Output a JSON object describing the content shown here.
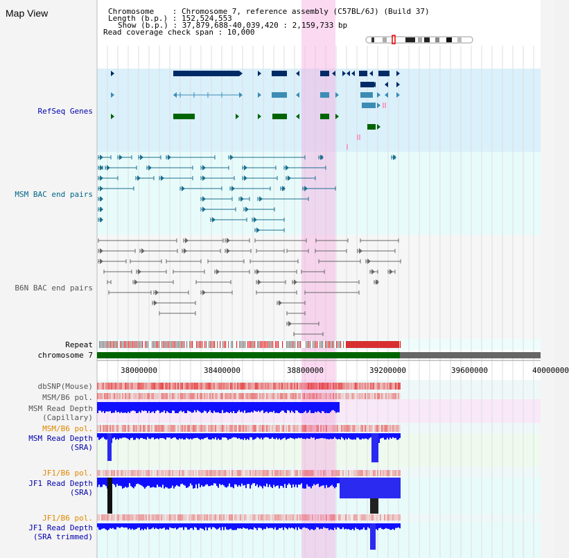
{
  "panel": {
    "title": "Map View",
    "info_lines": [
      "Chromosome    : Chromosome 7, reference assembly (C57BL/6J) (Build 37)",
      "Length (b.p.) : 152,524,553",
      "Show (b.p.) : 37,879,688-40,039,420 : 2,159,733 bp",
      "Read coverage check span : 10,000"
    ]
  },
  "tracks": {
    "refseq": "RefSeq Genes",
    "msm_bac": "MSM BAC end pairs",
    "b6n_bac": "B6N BAC end pairs",
    "repeat": "Repeat",
    "chromosome": "chromosome 7",
    "dbsnp": "dbSNP(Mouse)",
    "msm_b6_pol": "MSM/B6 pol.",
    "msm_read_depth_cap_1": "MSM Read Depth",
    "msm_read_depth_cap_2": "(Capillary)",
    "msm_b6_pol_2": "MSM/B6 pol.",
    "msm_read_depth_sra_1": "MSM Read Depth",
    "msm_read_depth_sra_2": "(SRA)",
    "jf1_b6_pol": "JF1/B6 pol.",
    "jf1_read_depth_sra_1": "JF1 Read Depth",
    "jf1_read_depth_sra_2": "(SRA)",
    "jf1_b6_pol_2": "JF1/B6 pol.",
    "jf1_read_depth_trim_1": "JF1 Read Depth",
    "jf1_read_depth_trim_2": "(SRA trimmed)"
  },
  "axis": {
    "ticks": [
      "38000000",
      "38400000",
      "38800000",
      "39200000",
      "39600000",
      "40000000"
    ]
  },
  "colors": {
    "label_blue": "#0000aa",
    "label_teal": "#006688",
    "label_gray": "#555555",
    "label_orange": "#dd8800",
    "highlight_pink": "#f9d2f0",
    "gene_navy": "#002a66",
    "gene_steel": "#3c8cb4",
    "gene_green": "#006400",
    "msm_bac": "#1a6e8c",
    "b6n_bac": "#666666",
    "chrom_green": "#006400",
    "chrom_gray": "#666666",
    "depth_blue": "#1010ff"
  }
}
